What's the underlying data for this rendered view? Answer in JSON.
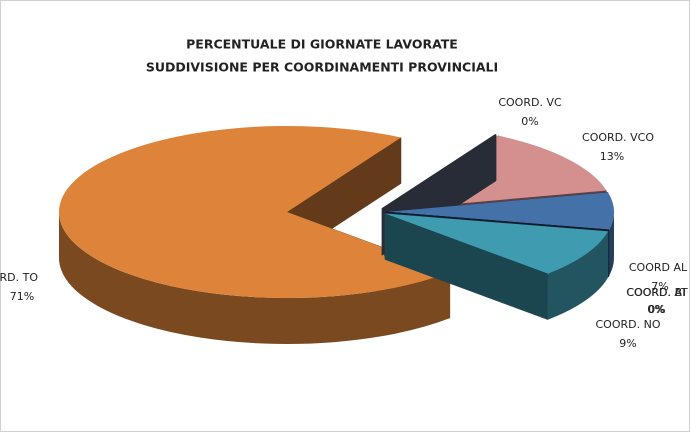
{
  "chart_data": {
    "type": "pie",
    "title": "PERCENTUALE DI GIORNATE LAVORATE",
    "subtitle": "SUDDIVISIONE PER COORDINAMENTI PROVINCIALI",
    "categories": [
      "COORD. VC",
      "COORD. VCO",
      "COORD AL",
      "COORD. AT",
      "COORD. BI",
      "COORD.  NO",
      "COORD. TO"
    ],
    "values": [
      0,
      13,
      7,
      0,
      0,
      9,
      71
    ],
    "value_labels": [
      "0%",
      "13%",
      "7%",
      "0%",
      "0%",
      "9%",
      "71%"
    ],
    "colors": [
      "#56627a",
      "#d4908f",
      "#4472a8",
      "#1f3050",
      "#2a3f66",
      "#3f9bb0",
      "#dd843a"
    ]
  }
}
